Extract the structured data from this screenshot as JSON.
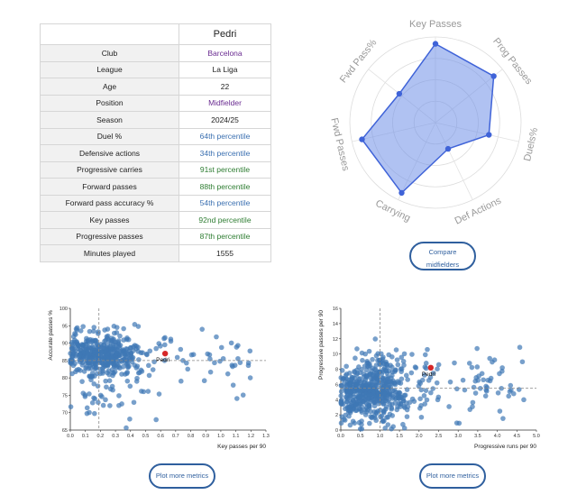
{
  "player": {
    "name": "Pedri",
    "rows": [
      {
        "label": "Club",
        "value": "Barcelona",
        "color": "#6a2c91"
      },
      {
        "label": "League",
        "value": "La Liga",
        "color": "#222222"
      },
      {
        "label": "Age",
        "value": "22",
        "color": "#222222"
      },
      {
        "label": "Position",
        "value": "Midfielder",
        "color": "#6a2c91"
      },
      {
        "label": "Season",
        "value": "2024/25",
        "color": "#222222"
      },
      {
        "label": "Duel %",
        "value": "64th percentile",
        "color": "#3a6fb0"
      },
      {
        "label": "Defensive actions",
        "value": "34th percentile",
        "color": "#3a6fb0"
      },
      {
        "label": "Progressive carries",
        "value": "91st percentile",
        "color": "#2e7d32"
      },
      {
        "label": "Forward passes",
        "value": "88th percentile",
        "color": "#2e7d32"
      },
      {
        "label": "Forward pass accuracy %",
        "value": "54th percentile",
        "color": "#3a6fb0"
      },
      {
        "label": "Key passes",
        "value": "92nd percentile",
        "color": "#2e7d32"
      },
      {
        "label": "Progressive passes",
        "value": "87th percentile",
        "color": "#2e7d32"
      },
      {
        "label": "Minutes played",
        "value": "1555",
        "color": "#222222"
      }
    ]
  },
  "buttons": {
    "compare_line1": "Compare",
    "compare_line2": "midfielders",
    "plot_more": "Plot more metrics"
  },
  "chart_data": [
    {
      "type": "radar",
      "axes": [
        "Key Passes",
        "Prog Passes",
        "Duels%",
        "Def Actions",
        "Carrying",
        "Fwd Passes",
        "Fwd Pass%"
      ],
      "values": [
        92,
        87,
        64,
        34,
        91,
        88,
        54
      ],
      "range": [
        0,
        100
      ],
      "fill_color": "#6f8fe8",
      "line_color": "#3f63d8"
    },
    {
      "type": "scatter",
      "xlabel": "Key passes per 90",
      "ylabel": "Accurate passes %",
      "xlim": [
        0,
        1.3
      ],
      "ylim": [
        65,
        100
      ],
      "xticks": [
        "0.0",
        "0.1",
        "0.2",
        "0.3",
        "0.4",
        "0.5",
        "0.6",
        "0.7",
        "0.8",
        "0.9",
        "1.0",
        "1.1",
        "1.2",
        "1.3"
      ],
      "yticks": [
        "65",
        "70",
        "75",
        "80",
        "85",
        "90",
        "95",
        "100"
      ],
      "highlight": {
        "label": "Pedri",
        "x": 0.63,
        "y": 87
      },
      "ref_x": 0.19,
      "ref_y": 85,
      "point_count": 520,
      "point_color": "#3f78b5",
      "highlight_color": "#d62728"
    },
    {
      "type": "scatter",
      "xlabel": "Progressive runs per 90",
      "ylabel": "Progressive passes per 90",
      "xlim": [
        0,
        5
      ],
      "ylim": [
        0,
        16
      ],
      "xticks": [
        "0.0",
        "0.5",
        "1.0",
        "1.5",
        "2.0",
        "2.5",
        "3.0",
        "3.5",
        "4.0",
        "4.5",
        "5.0"
      ],
      "yticks": [
        "0",
        "2",
        "4",
        "6",
        "8",
        "10",
        "12",
        "14",
        "16"
      ],
      "highlight": {
        "label": "Pedri",
        "x": 2.3,
        "y": 8.2
      },
      "ref_x": 1.0,
      "ref_y": 5.5,
      "point_count": 620,
      "point_color": "#3f78b5",
      "highlight_color": "#d62728"
    }
  ]
}
